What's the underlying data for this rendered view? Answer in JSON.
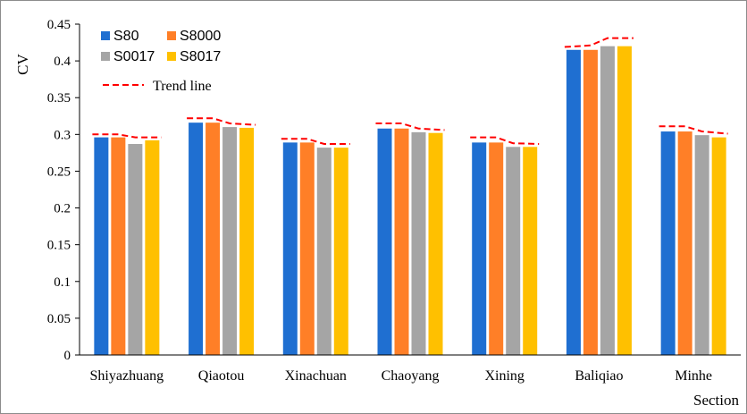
{
  "chart_data": {
    "type": "bar",
    "title": "",
    "ylabel": "CV",
    "xlabel": "Section",
    "ylim": [
      0,
      0.45
    ],
    "yticks": [
      0,
      0.05,
      0.1,
      0.15,
      0.2,
      0.25,
      0.3,
      0.35,
      0.4,
      0.45
    ],
    "ytick_labels": [
      "0",
      "0.05",
      "0.1",
      "0.15",
      "0.2",
      "0.25",
      "0.3",
      "0.35",
      "0.4",
      "0.45"
    ],
    "grid": false,
    "legend_position": "top-left",
    "categories": [
      "Shiyazhuang",
      "Qiaotou",
      "Xinachuan",
      "Chaoyang",
      "Xining",
      "Baliqiao",
      "Minhe"
    ],
    "series": [
      {
        "name": "S80",
        "color": "#1f6fd1",
        "values": [
          0.296,
          0.316,
          0.289,
          0.308,
          0.289,
          0.415,
          0.304
        ]
      },
      {
        "name": "S8000",
        "color": "#ff7f27",
        "values": [
          0.296,
          0.316,
          0.289,
          0.308,
          0.289,
          0.415,
          0.304
        ]
      },
      {
        "name": "S0017",
        "color": "#a5a5a5",
        "values": [
          0.287,
          0.31,
          0.282,
          0.303,
          0.283,
          0.42,
          0.299
        ]
      },
      {
        "name": "S8017",
        "color": "#ffc000",
        "values": [
          0.292,
          0.309,
          0.282,
          0.302,
          0.283,
          0.42,
          0.296
        ]
      }
    ],
    "trend_line": {
      "name": "Trend line",
      "color": "#ff0000",
      "style": "dashed",
      "values": [
        [
          0.3,
          0.3,
          0.296,
          0.296
        ],
        [
          0.322,
          0.322,
          0.315,
          0.313
        ],
        [
          0.294,
          0.294,
          0.287,
          0.287
        ],
        [
          0.315,
          0.315,
          0.308,
          0.306
        ],
        [
          0.296,
          0.296,
          0.288,
          0.287
        ],
        [
          0.419,
          0.421,
          0.431,
          0.431
        ],
        [
          0.311,
          0.311,
          0.304,
          0.301
        ]
      ]
    }
  }
}
